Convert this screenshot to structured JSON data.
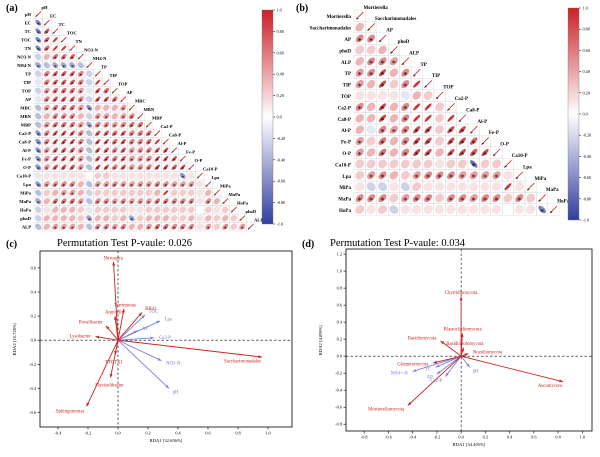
{
  "figure": {
    "panels": {
      "a": {
        "label": "(a)"
      },
      "b": {
        "label": "(b)"
      },
      "c": {
        "label": "(c)",
        "title": "Permutation Test P-vaule: 0.026"
      },
      "d": {
        "label": "(d)",
        "title": "Permutation Test P-vaule: 0.034"
      }
    }
  },
  "colors": {
    "positive": "#ca2026",
    "negative": "#303e9e",
    "species_arrow": "#c9251f",
    "env_arrow": "#7e82d8",
    "grid": "#d9d9d9",
    "axis": "#000000"
  },
  "chart_data": [
    {
      "id": "a",
      "type": "heatmap",
      "subtype": "correlogram-lower-triangle",
      "variables": [
        "pH",
        "EC",
        "TC",
        "TOC",
        "TN",
        "NO3-N",
        "NH4-N",
        "TP",
        "TIP",
        "TOP",
        "AP",
        "MBC",
        "MBN",
        "MBP",
        "Ca2-P",
        "Ca8-P",
        "Al-P",
        "Fe-P",
        "O-P",
        "Ca10-P",
        "Lpa",
        "MiPa",
        "MaPa",
        "HoPa",
        "phoD",
        "ALP"
      ],
      "rows": [
        [
          -0.6
        ],
        [
          -0.6,
          0.7
        ],
        [
          -0.6,
          0.7,
          0.9
        ],
        [
          -0.6,
          0.6,
          0.9,
          0.9
        ],
        [
          -0.2,
          0.3,
          0.6,
          0.6,
          0.7
        ],
        [
          -0.4,
          -0.3,
          -0.4,
          -0.4,
          -0.4,
          -0.3
        ],
        [
          -0.2,
          0.5,
          0.7,
          0.7,
          0.7,
          0.5,
          -0.2
        ],
        [
          -0.1,
          0.5,
          0.7,
          0.7,
          0.7,
          0.5,
          -0.2,
          0.9
        ],
        [
          -0.2,
          0.4,
          0.6,
          0.6,
          0.6,
          0.4,
          -0.1,
          0.8,
          0.6
        ],
        [
          -0.1,
          0.5,
          0.7,
          0.7,
          0.7,
          0.5,
          -0.2,
          0.8,
          0.8,
          0.6
        ],
        [
          -0.3,
          0.4,
          0.6,
          0.6,
          0.6,
          0.4,
          -0.5,
          0.3,
          0.3,
          0.3,
          0.4
        ],
        [
          -0.3,
          0.3,
          0.5,
          0.5,
          0.5,
          0.3,
          -0.2,
          0.4,
          0.4,
          0.3,
          0.4,
          0.5
        ],
        [
          -0.3,
          0.4,
          0.6,
          0.6,
          0.6,
          0.4,
          -0.4,
          0.5,
          0.5,
          0.4,
          0.5,
          0.6,
          0.6
        ],
        [
          -0.5,
          0.5,
          0.8,
          0.8,
          0.8,
          0.5,
          -0.3,
          0.7,
          0.7,
          0.6,
          0.7,
          0.5,
          0.5,
          0.6
        ],
        [
          -0.5,
          0.5,
          0.8,
          0.8,
          0.8,
          0.5,
          -0.3,
          0.8,
          0.8,
          0.6,
          0.8,
          0.5,
          0.5,
          0.6,
          0.9
        ],
        [
          -0.5,
          0.4,
          0.7,
          0.7,
          0.7,
          0.4,
          -0.3,
          0.7,
          0.7,
          0.5,
          0.7,
          0.4,
          0.4,
          0.5,
          0.8,
          0.8
        ],
        [
          -0.5,
          0.4,
          0.7,
          0.7,
          0.7,
          0.4,
          -0.3,
          0.7,
          0.7,
          0.5,
          0.7,
          0.4,
          0.4,
          0.5,
          0.8,
          0.8,
          0.8
        ],
        [
          -0.5,
          0.4,
          0.7,
          0.7,
          0.7,
          0.4,
          -0.3,
          0.8,
          0.8,
          0.5,
          0.7,
          0.4,
          0.4,
          0.5,
          0.8,
          0.8,
          0.7,
          0.8
        ],
        [
          -0.1,
          0.1,
          0.1,
          0.1,
          0.1,
          0.1,
          0.0,
          0.2,
          0.2,
          0.1,
          0.1,
          0.1,
          0.1,
          0.1,
          0.1,
          0.1,
          0.1,
          -0.5,
          0.1
        ],
        [
          -0.5,
          0.4,
          0.5,
          0.5,
          0.5,
          0.3,
          -0.3,
          0.4,
          0.4,
          0.5,
          0.4,
          0.4,
          0.4,
          0.4,
          0.5,
          0.5,
          0.4,
          0.4,
          0.4,
          0.1
        ],
        [
          -0.3,
          0.2,
          0.3,
          0.4,
          0.4,
          0.3,
          -0.2,
          0.2,
          0.2,
          0.2,
          0.2,
          0.2,
          0.2,
          0.2,
          0.3,
          0.9,
          0.2,
          0.2,
          0.2,
          0.1,
          0.3
        ],
        [
          -0.4,
          0.3,
          0.6,
          0.6,
          0.6,
          0.4,
          -0.3,
          0.5,
          0.5,
          0.4,
          0.5,
          0.4,
          0.4,
          0.4,
          0.6,
          0.6,
          0.5,
          0.5,
          0.5,
          0.1,
          0.5,
          0.3
        ],
        [
          -0.2,
          0.1,
          0.3,
          0.3,
          0.3,
          0.2,
          -0.1,
          0.2,
          0.2,
          0.2,
          0.2,
          0.1,
          0.1,
          0.2,
          0.2,
          0.2,
          0.2,
          0.2,
          0.2,
          0.0,
          0.2,
          0.1,
          0.2
        ],
        [
          -0.2,
          0.3,
          0.3,
          0.3,
          0.3,
          0.2,
          -0.4,
          0.3,
          0.3,
          0.2,
          0.3,
          -0.4,
          0.2,
          0.3,
          0.3,
          0.3,
          0.2,
          0.2,
          0.3,
          0.1,
          0.3,
          0.2,
          0.3,
          0.2
        ],
        [
          -0.3,
          0.3,
          0.4,
          0.4,
          0.4,
          0.3,
          -0.3,
          0.5,
          0.5,
          0.4,
          0.5,
          0.3,
          0.3,
          0.4,
          0.6,
          0.6,
          0.5,
          0.5,
          0.5,
          0.1,
          0.4,
          0.2,
          0.5,
          0.2,
          0.4
        ]
      ],
      "colorbar_ticks": [
        "1.0",
        "0.80",
        "0.60",
        "0.40",
        "0.20",
        "0.0",
        "-0.20",
        "-0.40",
        "-0.60",
        "-0.80",
        "-1.0"
      ],
      "colorbar_range": [
        -1,
        1
      ]
    },
    {
      "id": "b",
      "type": "heatmap",
      "subtype": "correlogram-lower-triangle",
      "variables": [
        "Mortierella",
        "Saccharimonadales",
        "AP",
        "phoD",
        "ALP",
        "TP",
        "TIP",
        "TOP",
        "Ca2-P",
        "Ca8-P",
        "Al-P",
        "Fe-P",
        "O-P",
        "Ca10-P",
        "Lpa",
        "MiPa",
        "MaPa",
        "HoPa"
      ],
      "rows": [
        [
          0.3
        ],
        [
          0.5,
          0.5
        ],
        [
          0.2,
          0.2,
          0.3
        ],
        [
          0.3,
          0.5,
          0.5,
          0.4
        ],
        [
          0.4,
          0.5,
          0.8,
          0.3,
          0.5
        ],
        [
          0.4,
          0.3,
          0.8,
          0.2,
          0.5,
          0.9
        ],
        [
          0.1,
          0.1,
          0.1,
          0.1,
          -0.1,
          0.3,
          0.2
        ],
        [
          0.5,
          0.3,
          0.8,
          0.3,
          0.5,
          0.9,
          0.9,
          0.2
        ],
        [
          0.3,
          0.3,
          0.8,
          0.3,
          0.5,
          0.9,
          0.9,
          0.2,
          0.9
        ],
        [
          0.3,
          -0.1,
          0.5,
          0.4,
          0.5,
          0.8,
          0.8,
          0.2,
          0.8,
          0.8
        ],
        [
          0.4,
          0.2,
          0.6,
          0.3,
          0.5,
          0.8,
          0.8,
          0.2,
          0.8,
          0.8,
          0.7
        ],
        [
          0.4,
          0.3,
          0.6,
          0.3,
          0.5,
          0.8,
          0.8,
          0.3,
          0.8,
          0.8,
          0.7,
          0.8
        ],
        [
          0.2,
          0.2,
          0.2,
          0.2,
          0.2,
          0.2,
          0.2,
          0.1,
          0.2,
          0.2,
          -0.7,
          0.2,
          0.2
        ],
        [
          0.2,
          0.4,
          0.5,
          0.3,
          0.2,
          0.4,
          0.5,
          0.5,
          0.5,
          0.4,
          0.4,
          0.4,
          0.4,
          0.1
        ],
        [
          0.1,
          -0.2,
          -0.2,
          0.1,
          -0.2,
          0.2,
          0.1,
          0.1,
          0.1,
          0.1,
          0.1,
          0.1,
          0.1,
          0.9,
          0.1
        ],
        [
          0.5,
          0.5,
          0.5,
          0.2,
          0.4,
          0.5,
          0.5,
          0.2,
          0.5,
          0.5,
          0.4,
          0.5,
          0.5,
          0.2,
          0.5,
          0.2
        ],
        [
          0.2,
          0.1,
          0.2,
          -0.2,
          0.1,
          0.1,
          0.1,
          0.1,
          0.1,
          0.1,
          0.1,
          0.1,
          0.1,
          0.0,
          0.1,
          0.1,
          -0.6
        ]
      ],
      "colorbar_ticks": [
        "1.0",
        "0.80",
        "0.60",
        "0.40",
        "0.20",
        "0.0",
        "-0.20",
        "-0.40",
        "-0.60",
        "-0.80",
        "-1.0"
      ],
      "colorbar_range": [
        -1,
        1
      ]
    },
    {
      "id": "c",
      "type": "scatter",
      "subtype": "rda-biplot",
      "title": "Permutation Test P-vaule: 0.026",
      "xlabel": "RDA1 [32.656%]",
      "ylabel": "RDA2 [10.728%]",
      "xlim": [
        -0.52,
        1.16
      ],
      "ylim": [
        -0.72,
        0.74
      ],
      "xticks": [
        "-0.4",
        "-0.2",
        "0.0",
        "0.2",
        "0.4",
        "0.6",
        "0.8",
        "1.0"
      ],
      "yticks": [
        "-0.6",
        "-0.4",
        "-0.2",
        "0.0",
        "0.2",
        "0.4",
        "0.6"
      ],
      "species": [
        {
          "name": "Nitrospira",
          "x": -0.03,
          "y": 0.65
        },
        {
          "name": "Terrimonas",
          "x": 0.04,
          "y": 0.26
        },
        {
          "name": "RB41",
          "x": 0.16,
          "y": 0.23
        },
        {
          "name": "Aquicella",
          "x": -0.02,
          "y": 0.2
        },
        {
          "name": "Povalibacter",
          "x": -0.08,
          "y": 0.12
        },
        {
          "name": "Lysobacter",
          "x": -0.15,
          "y": 0.03
        },
        {
          "name": "TTCTX1",
          "x": -0.02,
          "y": -0.12
        },
        {
          "name": "Flavisolibacter",
          "x": -0.05,
          "y": -0.31
        },
        {
          "name": "Sphingomonas",
          "x": -0.21,
          "y": -0.55
        },
        {
          "name": "Saccharimonadales",
          "x": 0.96,
          "y": -0.14
        }
      ],
      "env": [
        {
          "name": "TOC",
          "x": 0.18,
          "y": 0.21
        },
        {
          "name": "Lpa",
          "x": 0.28,
          "y": 0.16
        },
        {
          "name": "AP",
          "x": 0.13,
          "y": 0.08
        },
        {
          "name": "Ca2-P",
          "x": 0.24,
          "y": 0.02
        },
        {
          "name": "NO3-N",
          "x": 0.29,
          "y": -0.17
        },
        {
          "name": "pH",
          "x": 0.34,
          "y": -0.4
        }
      ]
    },
    {
      "id": "d",
      "type": "scatter",
      "subtype": "rda-biplot",
      "title": "Permutation Test P-vaule: 0.034",
      "xlabel": "RDA1 [34.495%]",
      "ylabel": "RDA2 [4.899%]",
      "xlim": [
        -0.95,
        1.08
      ],
      "ylim": [
        -0.88,
        1.26
      ],
      "xticks": [
        "-0.8",
        "-0.6",
        "-0.4",
        "-0.2",
        "0.0",
        "0.2",
        "0.4",
        "0.6",
        "0.8",
        "1.0"
      ],
      "yticks": [
        "-0.8",
        "-0.6",
        "-0.4",
        "-0.2",
        "0.0",
        "0.2",
        "0.4",
        "0.6",
        "0.8",
        "1.0",
        "1.2"
      ],
      "species": [
        {
          "name": "Chytridiomycota",
          "x": 0.0,
          "y": 0.7
        },
        {
          "name": "Blastocladiomycota",
          "x": 0.01,
          "y": 0.27
        },
        {
          "name": "Basidiomycota",
          "x": -0.17,
          "y": 0.18
        },
        {
          "name": "Basidiobolomycota",
          "x": 0.02,
          "y": 0.1
        },
        {
          "name": "Rozellomycota",
          "x": 0.06,
          "y": 0.03
        },
        {
          "name": "Ascomycota",
          "x": 0.84,
          "y": -0.3
        },
        {
          "name": "Mortierellomycota",
          "x": -0.44,
          "y": -0.58
        },
        {
          "name": "Glomeromycota",
          "x": -0.23,
          "y": -0.08
        }
      ],
      "env": [
        {
          "name": "NH4+-N",
          "x": -0.4,
          "y": -0.18
        },
        {
          "name": "TC",
          "x": -0.21,
          "y": -0.13
        },
        {
          "name": "AP",
          "x": -0.2,
          "y": -0.21
        },
        {
          "name": "Ca2-P",
          "x": -0.13,
          "y": -0.24
        },
        {
          "name": "pH",
          "x": 0.07,
          "y": -0.13
        }
      ]
    }
  ]
}
